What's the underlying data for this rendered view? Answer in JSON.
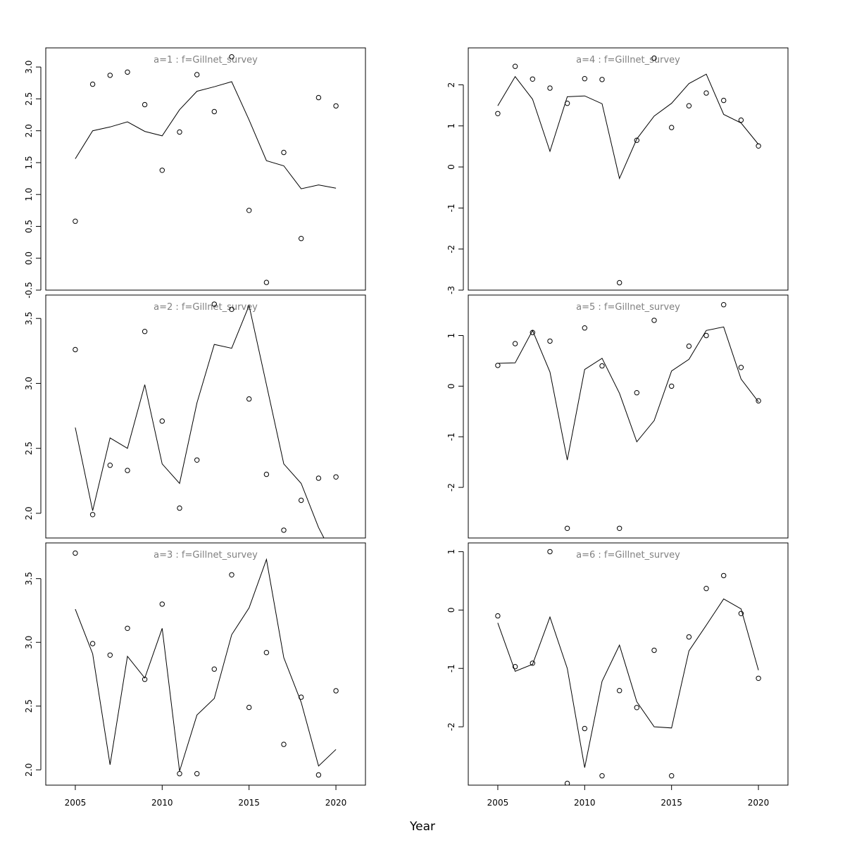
{
  "chart_data": {
    "type": "line",
    "xlabel": "Year",
    "x_ticks": [
      2005,
      2010,
      2015,
      2020
    ],
    "xlim": [
      2003.3,
      2021.7
    ],
    "x": [
      2005,
      2006,
      2007,
      2008,
      2009,
      2010,
      2011,
      2012,
      2013,
      2014,
      2015,
      2016,
      2017,
      2018,
      2019,
      2020
    ],
    "panels": [
      {
        "title": "a=1 : f=Gillnet_survey",
        "ylim": [
          -0.5,
          3.3
        ],
        "y_ticks": [
          -0.5,
          0.0,
          0.5,
          1.0,
          1.5,
          2.0,
          2.5,
          3.0
        ],
        "y_tick_labels": [
          "-0.5",
          "0.0",
          "0.5",
          "1.0",
          "1.5",
          "2.0",
          "2.5",
          "3.0"
        ],
        "observed": [
          0.58,
          2.73,
          2.87,
          2.92,
          2.41,
          1.38,
          1.98,
          2.88,
          2.3,
          3.16,
          0.75,
          -0.38,
          1.66,
          0.31,
          2.52,
          2.39
        ],
        "fitted": [
          1.56,
          2.0,
          2.06,
          2.14,
          1.99,
          1.92,
          2.33,
          2.62,
          2.69,
          2.77,
          2.17,
          1.53,
          1.45,
          1.09,
          1.15,
          1.1
        ]
      },
      {
        "title": "a=2 : f=Gillnet_survey",
        "ylim": [
          1.81,
          3.68
        ],
        "y_ticks": [
          2.0,
          2.5,
          3.0,
          3.5
        ],
        "y_tick_labels": [
          "2.0",
          "2.5",
          "3.0",
          "3.5"
        ],
        "observed": [
          3.26,
          1.99,
          2.37,
          2.33,
          3.4,
          2.71,
          2.04,
          2.41,
          3.61,
          3.57,
          2.88,
          2.3,
          1.87,
          2.1,
          2.27,
          2.28
        ],
        "fitted": [
          2.66,
          2.02,
          2.58,
          2.5,
          2.99,
          2.38,
          2.23,
          2.85,
          3.3,
          3.27,
          3.6,
          2.99,
          2.38,
          2.23,
          1.89,
          1.63
        ]
      },
      {
        "title": "a=3 : f=Gillnet_survey",
        "ylim": [
          1.88,
          3.78
        ],
        "y_ticks": [
          2.0,
          2.5,
          3.0,
          3.5
        ],
        "y_tick_labels": [
          "2.0",
          "2.5",
          "3.0",
          "3.5"
        ],
        "observed": [
          3.7,
          2.99,
          2.9,
          3.11,
          2.71,
          3.3,
          1.97,
          1.97,
          2.79,
          3.53,
          2.49,
          2.92,
          2.2,
          2.57,
          1.96,
          2.62
        ],
        "fitted": [
          3.26,
          2.91,
          2.04,
          2.89,
          2.72,
          3.11,
          1.99,
          2.43,
          2.56,
          3.06,
          3.27,
          3.65,
          2.88,
          2.53,
          2.03,
          2.16
        ]
      },
      {
        "title": "a=4 : f=Gillnet_survey",
        "ylim": [
          -3.0,
          2.9
        ],
        "y_ticks": [
          -3,
          -2,
          -1,
          0,
          1,
          2
        ],
        "y_tick_labels": [
          "-3",
          "-2",
          "-1",
          "0",
          "1",
          "2"
        ],
        "observed": [
          1.3,
          2.45,
          2.14,
          1.92,
          1.55,
          2.15,
          2.13,
          -2.82,
          0.65,
          2.65,
          0.96,
          1.49,
          1.8,
          1.62,
          1.14,
          0.51
        ],
        "fitted": [
          1.49,
          2.2,
          1.65,
          0.38,
          1.71,
          1.73,
          1.54,
          -0.28,
          0.68,
          1.24,
          1.55,
          2.03,
          2.26,
          1.28,
          1.07,
          0.55
        ]
      },
      {
        "title": "a=5 : f=Gillnet_survey",
        "ylim": [
          -3.0,
          1.8
        ],
        "y_ticks": [
          -2,
          -1,
          0,
          1
        ],
        "y_tick_labels": [
          "-2",
          "-1",
          "0",
          "1"
        ],
        "observed": [
          0.41,
          0.84,
          1.06,
          0.89,
          -2.81,
          1.15,
          0.4,
          -2.81,
          -0.13,
          1.3,
          0.0,
          0.79,
          1.0,
          1.61,
          0.37,
          -0.29
        ],
        "fitted": [
          0.45,
          0.46,
          1.1,
          0.28,
          -1.46,
          0.33,
          0.55,
          -0.14,
          -1.1,
          -0.68,
          0.3,
          0.53,
          1.1,
          1.17,
          0.14,
          -0.31
        ]
      },
      {
        "title": "a=6 : f=Gillnet_survey",
        "ylim": [
          -3.0,
          1.15
        ],
        "y_ticks": [
          -2,
          -1,
          0,
          1
        ],
        "y_tick_labels": [
          "-2",
          "-1",
          "0",
          "1"
        ],
        "observed": [
          -0.1,
          -0.97,
          -0.91,
          1.0,
          -2.97,
          -2.03,
          -2.84,
          -1.38,
          -1.67,
          -0.69,
          -2.84,
          -0.46,
          0.37,
          0.59,
          -0.06,
          -1.17
        ],
        "fitted": [
          -0.22,
          -1.05,
          -0.93,
          -0.12,
          -1.0,
          -2.7,
          -1.22,
          -0.6,
          -1.57,
          -2.0,
          -2.02,
          -0.7,
          -0.26,
          0.19,
          0.02,
          -1.03
        ]
      }
    ]
  }
}
